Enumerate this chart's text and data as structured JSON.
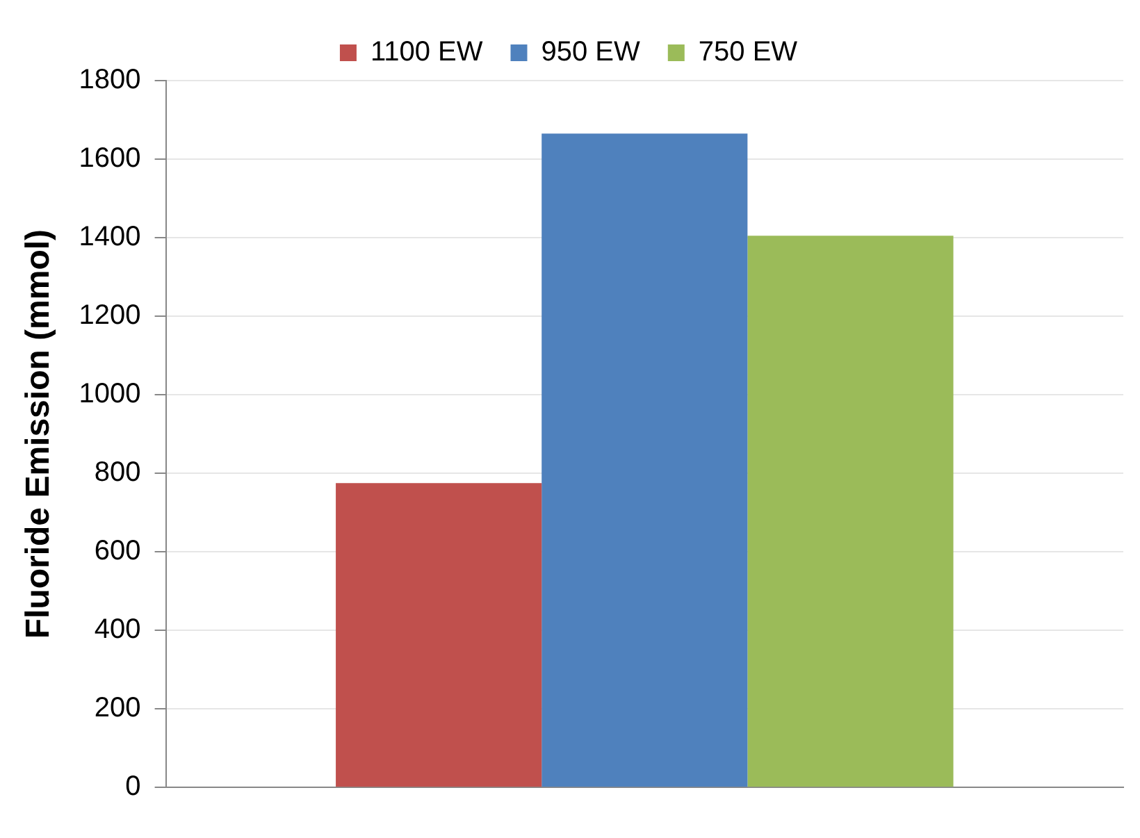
{
  "chart_data": {
    "type": "bar",
    "ylabel": "Fluoride Emission (mmol)",
    "categories": [
      null
    ],
    "series": [
      {
        "name": "1100 EW",
        "color": "#c0504d",
        "values": [
          775
        ]
      },
      {
        "name": "950 EW",
        "color": "#4f81bd",
        "values": [
          1665
        ]
      },
      {
        "name": "750 EW",
        "color": "#9bbb59",
        "values": [
          1405
        ]
      }
    ],
    "ylim": [
      0,
      1800
    ],
    "yticks": [
      0,
      200,
      400,
      600,
      800,
      1000,
      1200,
      1400,
      1600,
      1800
    ],
    "grid": "y",
    "legend": "top"
  }
}
